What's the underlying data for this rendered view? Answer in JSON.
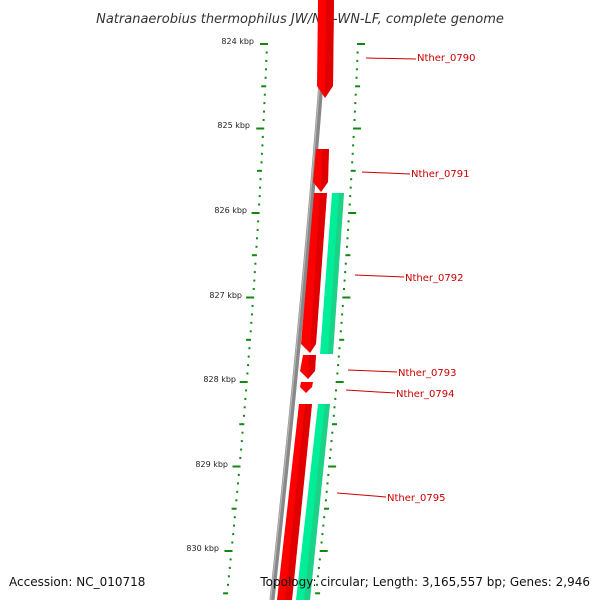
{
  "title": "Natranaerobius thermophilus JW/NM-WN-LF, complete genome",
  "footer": {
    "accession": "Accession: NC_010718",
    "summary": "Topology: circular; Length: 3,165,557 bp; Genes: 2,946"
  },
  "scale": {
    "unit": "kbp",
    "labels": [
      "824 kbp",
      "825 kbp",
      "826 kbp",
      "827 kbp",
      "828 kbp",
      "829 kbp",
      "830 kbp"
    ]
  },
  "genes": [
    {
      "label": "Nther_0790",
      "strand": "forward"
    },
    {
      "label": "Nther_0791",
      "strand": "forward"
    },
    {
      "label": "Nther_0792",
      "strand": "both"
    },
    {
      "label": "Nther_0793",
      "strand": "forward"
    },
    {
      "label": "Nther_0794",
      "strand": "forward"
    },
    {
      "label": "Nther_0795",
      "strand": "both"
    }
  ],
  "colors": {
    "forward_gene": "#ff0000",
    "reverse_gene": "#00ee99",
    "backbone": "#808080",
    "ticks": "#118811",
    "gene_label": "#cc0000"
  }
}
